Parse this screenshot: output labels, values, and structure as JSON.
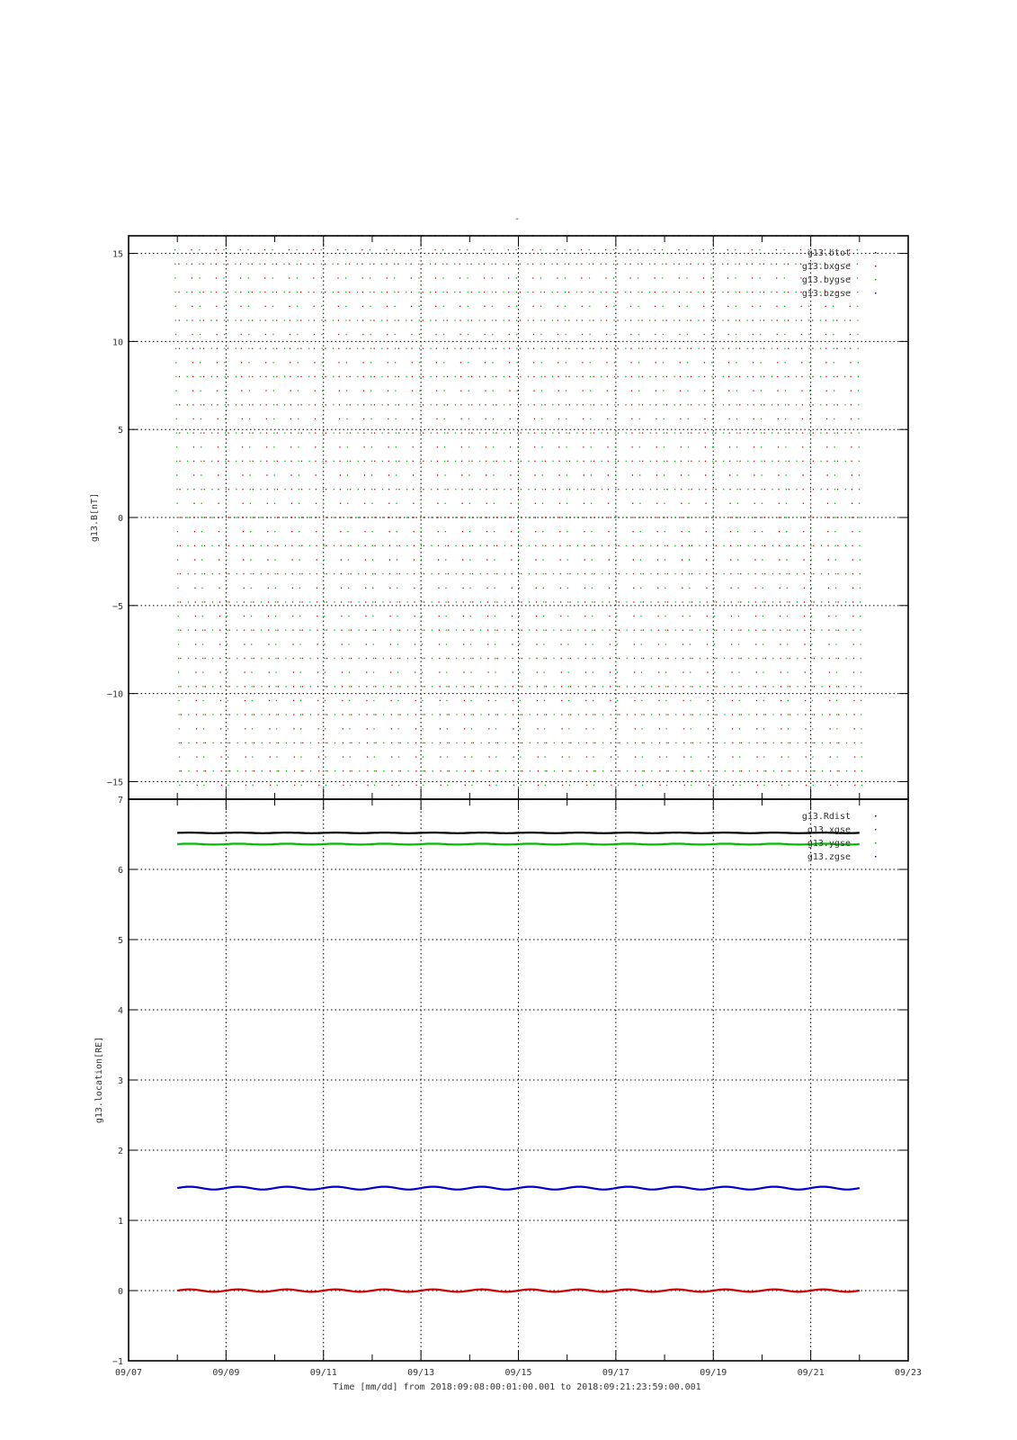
{
  "chart_data": [
    {
      "type": "scatter",
      "title": "-",
      "ylabel": "g13.B[nT]",
      "xlabel": "",
      "ylim": [
        -16,
        16
      ],
      "yticks": [
        -15,
        -10,
        -5,
        0,
        5,
        10,
        15
      ],
      "xlim": [
        "09/07",
        "09/23"
      ],
      "grid": true,
      "legend_position": "top-right",
      "series": [
        {
          "name": "g13.btot",
          "color": "#000000",
          "description_values": "off-scale (above 16)"
        },
        {
          "name": "g13.bxgse",
          "color": "#cc0000",
          "x_start": "09/08",
          "x_end": "09/21",
          "y_range": [
            -16,
            16
          ],
          "sweeps_per_day": 2.0
        },
        {
          "name": "g13.bygse",
          "color": "#00bb00",
          "x_start": "09/08",
          "x_end": "09/21",
          "y_range": [
            -16,
            16
          ],
          "sweeps_per_day": 2.0
        },
        {
          "name": "g13.bzgse",
          "color": "#0000cc",
          "description_values": "off-scale"
        }
      ]
    },
    {
      "type": "line",
      "ylabel": "g13.location[RE]",
      "xlabel": "Time [mm/dd]  from 2018:09:08:00:01:00.001  to  2018:09:21:23:59:00.001",
      "ylim": [
        -1,
        7
      ],
      "yticks": [
        -1,
        0,
        1,
        2,
        3,
        4,
        5,
        6,
        7
      ],
      "xticks": [
        "09/07",
        "09/09",
        "09/11",
        "09/13",
        "09/15",
        "09/17",
        "09/19",
        "09/21",
        "09/23"
      ],
      "grid": true,
      "legend_position": "top-right",
      "series": [
        {
          "name": "g13.Rdist",
          "color": "#000000",
          "x": [
            "09/08",
            "09/21"
          ],
          "y": [
            6.52,
            6.52
          ]
        },
        {
          "name": "g13.xgse",
          "color": "#cc0000",
          "x": [
            "09/08",
            "09/21"
          ],
          "y": [
            0.0,
            0.0
          ]
        },
        {
          "name": "g13.ygse",
          "color": "#00bb00",
          "x": [
            "09/08",
            "09/21"
          ],
          "y": [
            6.36,
            6.36
          ]
        },
        {
          "name": "g13.zgse",
          "color": "#0000cc",
          "x": [
            "09/08",
            "09/21"
          ],
          "y": [
            1.46,
            1.46
          ]
        }
      ]
    }
  ]
}
